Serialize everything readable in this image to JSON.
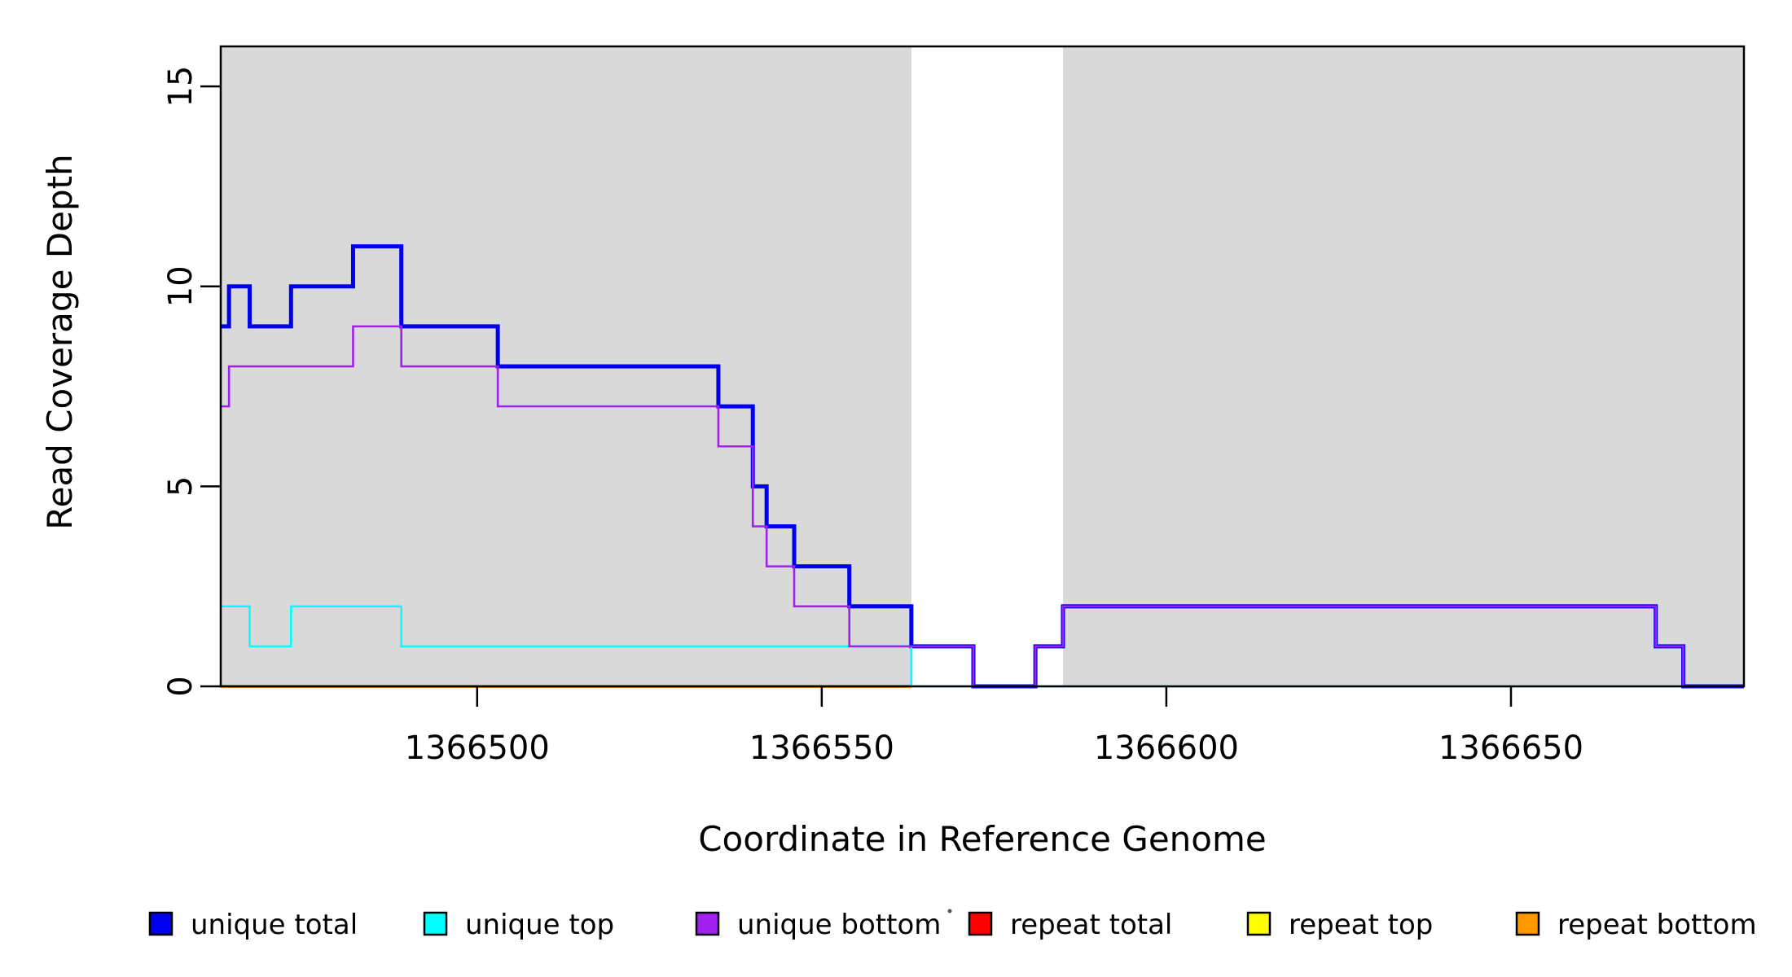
{
  "chart_data": {
    "type": "line",
    "subtype": "step-after",
    "title": "",
    "xlabel": "Coordinate in Reference Genome",
    "ylabel": "Read Coverage Depth",
    "xlim": [
      1366462.8,
      1366683.8
    ],
    "ylim": [
      0,
      16
    ],
    "x_ticks": [
      1366500,
      1366550,
      1366600,
      1366650
    ],
    "y_ticks": [
      0,
      5,
      10,
      15
    ],
    "grid": false,
    "legend_position": "bottom",
    "background_color": "#ffffff",
    "shaded_region_color": "#D9D9D9",
    "shaded_regions": [
      {
        "name": "left-shaded-region",
        "x0": 1366462.8,
        "x1": 1366563
      },
      {
        "name": "right-shaded-region",
        "x0": 1366585,
        "x1": 1366683.8
      }
    ],
    "series": [
      {
        "name": "repeat total",
        "color": "#FF0000",
        "width": 2,
        "steps": [
          [
            1366462.8,
            0
          ],
          [
            1366563,
            0
          ]
        ]
      },
      {
        "name": "repeat top",
        "color": "#FFFF00",
        "width": 2,
        "steps": [
          [
            1366462.8,
            0
          ],
          [
            1366563,
            0
          ]
        ]
      },
      {
        "name": "repeat bottom",
        "color": "#FF9800",
        "width": 4,
        "steps": [
          [
            1366462.8,
            0
          ],
          [
            1366563,
            0
          ]
        ]
      },
      {
        "name": "unique total",
        "color": "#0000EE",
        "width": 5,
        "steps": [
          [
            1366462.8,
            9
          ],
          [
            1366464,
            10
          ],
          [
            1366467,
            9
          ],
          [
            1366473,
            10
          ],
          [
            1366482,
            11
          ],
          [
            1366489,
            9
          ],
          [
            1366503,
            8
          ],
          [
            1366535,
            7
          ],
          [
            1366540,
            5
          ],
          [
            1366542,
            4
          ],
          [
            1366546,
            3
          ],
          [
            1366554,
            2
          ],
          [
            1366563,
            1
          ],
          [
            1366572,
            0
          ],
          [
            1366581,
            1
          ],
          [
            1366585,
            2
          ],
          [
            1366671,
            1
          ],
          [
            1366675,
            0
          ],
          [
            1366683.8,
            0
          ]
        ]
      },
      {
        "name": "unique top",
        "color": "#00FFFF",
        "width": 2.6,
        "steps": [
          [
            1366462.8,
            2
          ],
          [
            1366467,
            1
          ],
          [
            1366473,
            2
          ],
          [
            1366489,
            1
          ],
          [
            1366563,
            0
          ],
          [
            1366683.8,
            0
          ]
        ]
      },
      {
        "name": "unique bottom",
        "color": "#A020F0",
        "width": 2.6,
        "steps": [
          [
            1366462.8,
            7
          ],
          [
            1366464,
            8
          ],
          [
            1366482,
            9
          ],
          [
            1366489,
            8
          ],
          [
            1366503,
            7
          ],
          [
            1366535,
            6
          ],
          [
            1366540,
            4
          ],
          [
            1366542,
            3
          ],
          [
            1366546,
            2
          ],
          [
            1366554,
            1
          ],
          [
            1366572,
            0
          ],
          [
            1366581,
            1
          ],
          [
            1366585,
            2
          ],
          [
            1366671,
            1
          ],
          [
            1366675,
            0
          ],
          [
            1366683.8,
            0
          ]
        ]
      }
    ],
    "legend": [
      {
        "label": "unique total",
        "color": "#0000EE"
      },
      {
        "label": "unique top",
        "color": "#00FFFF"
      },
      {
        "label": "unique bottom",
        "color": "#A020F0"
      },
      {
        "label": "repeat total",
        "color": "#FF0000"
      },
      {
        "label": "repeat top",
        "color": "#FFFF00"
      },
      {
        "label": "repeat bottom",
        "color": "#FF9800"
      }
    ],
    "stray_mark": {
      "present": true
    }
  }
}
